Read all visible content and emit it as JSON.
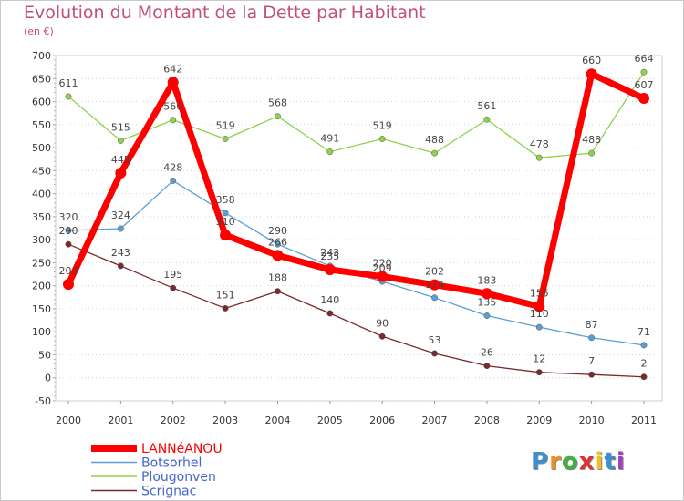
{
  "chart_data": {
    "type": "line",
    "title": "Evolution du Montant de la Dette par Habitant",
    "subtitle": "(en €)",
    "x": [
      "2000",
      "2001",
      "2002",
      "2003",
      "2004",
      "2005",
      "2006",
      "2007",
      "2008",
      "2009",
      "2010",
      "2011"
    ],
    "ylim": [
      -50,
      700
    ],
    "yticks": [
      -50,
      0,
      50,
      100,
      150,
      200,
      250,
      300,
      350,
      400,
      450,
      500,
      550,
      600,
      650,
      700
    ],
    "grid": "horizontal-dotted",
    "legend_placement": "bottom-left",
    "series": [
      {
        "name": "LANNéANOU",
        "color": "#ff0000",
        "values": [
          203,
          445,
          642,
          310,
          266,
          235,
          220,
          202,
          183,
          155,
          660,
          607
        ]
      },
      {
        "name": "Botsorhel",
        "color": "#5a9fd4",
        "values": [
          320,
          324,
          428,
          358,
          290,
          243,
          209,
          174,
          135,
          110,
          87,
          71
        ]
      },
      {
        "name": "Plougonven",
        "color": "#8ed14a",
        "values": [
          611,
          515,
          560,
          519,
          568,
          491,
          519,
          488,
          561,
          478,
          488,
          664
        ]
      },
      {
        "name": "Scrignac",
        "color": "#7a2a2a",
        "values": [
          290,
          243,
          195,
          151,
          188,
          140,
          90,
          53,
          26,
          12,
          7,
          2
        ]
      }
    ]
  },
  "logo": {
    "letters": [
      "P",
      "r",
      "o",
      "x",
      "i",
      "t",
      "i"
    ],
    "colors": [
      "#3a8fd0",
      "#f09020",
      "#40b040",
      "#e03030",
      "#f0c020",
      "#3a8fd0",
      "#a040c0"
    ]
  }
}
